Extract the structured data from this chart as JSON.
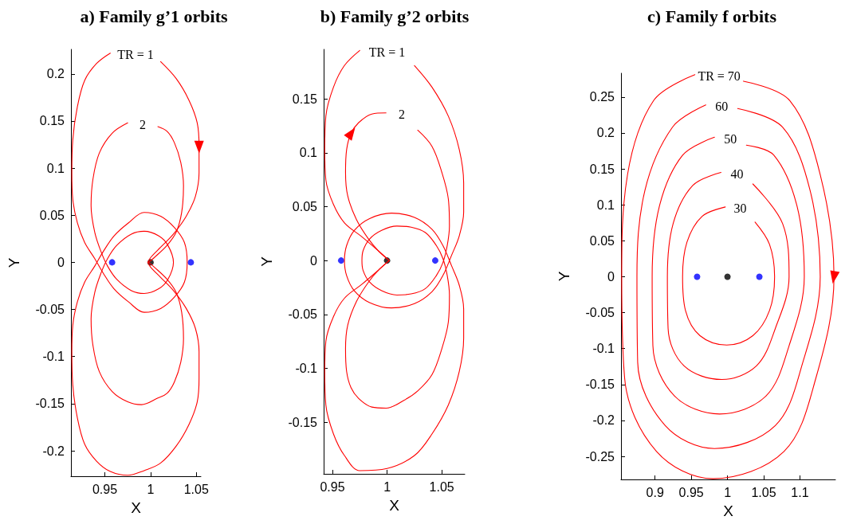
{
  "chart_data": [
    {
      "type": "line",
      "title": "a) Family g’1 orbits",
      "xlabel": "X",
      "ylabel": "Y",
      "xlim": [
        0.913,
        1.055
      ],
      "ylim": [
        -0.227,
        0.226
      ],
      "xticks": [
        0.95,
        1,
        1.05
      ],
      "yticks": [
        -0.2,
        -0.15,
        -0.1,
        -0.05,
        0,
        0.05,
        0.1,
        0.15,
        0.2
      ],
      "annotations": [
        "TR = 1",
        "2"
      ],
      "series": [
        {
          "color": "#ff0000",
          "x": [
            0.997,
            1.0,
            1.011,
            1.025,
            1.039,
            1.049,
            1.053,
            1.053,
            1.051,
            1.042,
            1.028,
            1.011,
            0.985,
            0.956,
            0.941,
            0.928,
            0.92,
            0.915,
            0.914,
            0.915,
            0.92,
            0.928,
            0.939,
            0.948,
            0.96,
            0.976,
            0.993,
            1.011,
            1.026,
            1.037,
            1.04,
            1.037,
            1.026,
            1.011,
            0.993,
            0.976,
            0.96,
            0.948,
            0.939,
            0.928,
            0.92,
            0.915,
            0.914,
            0.915,
            0.92,
            0.928,
            0.941,
            0.956,
            0.975,
            0.993,
            1.011,
            1.028,
            1.042,
            1.051,
            1.053,
            1.053,
            1.049,
            1.039,
            1.025,
            1.011,
            1.0,
            0.997
          ],
          "values": [
            0,
            0.005,
            0.016,
            0.03,
            0.049,
            0.07,
            0.095,
            0.123,
            0.148,
            0.172,
            0.195,
            0.213,
            null,
            0.222,
            0.211,
            0.193,
            0.165,
            0.13,
            0.095,
            0.067,
            0.042,
            0.021,
            0.004,
            -0.011,
            -0.028,
            -0.042,
            -0.053,
            -0.049,
            -0.037,
            -0.021,
            0,
            0.021,
            0.037,
            0.049,
            0.053,
            0.042,
            0.028,
            0.011,
            -0.004,
            -0.021,
            -0.042,
            -0.067,
            -0.095,
            -0.13,
            -0.165,
            -0.193,
            -0.211,
            -0.222,
            -0.226,
            -0.221,
            -0.213,
            -0.195,
            -0.172,
            -0.148,
            -0.123,
            -0.095,
            -0.07,
            -0.049,
            -0.03,
            -0.016,
            -0.005,
            0
          ]
        },
        {
          "color": "#ff0000",
          "x": [
            0.998,
            1.004,
            1.018,
            1.028,
            1.034,
            1.036,
            1.033,
            1.026,
            1.018,
            1.008,
            0.99,
            0.975,
            0.958,
            0.944,
            0.937,
            0.935,
            0.939,
            0.946,
            0.953,
            0.963,
            0.979,
            0.993,
            1.009,
            1.019,
            1.025,
            1.019,
            1.009,
            0.993,
            0.979,
            0.963,
            0.953,
            0.946,
            0.939,
            0.935,
            0.937,
            0.944,
            0.958,
            0.975,
            0.99,
            1.008,
            1.018,
            1.026,
            1.033,
            1.036,
            1.034,
            1.028,
            1.018,
            1.004,
            0.998
          ],
          "values": [
            0,
            0.005,
            0.018,
            0.032,
            0.053,
            0.081,
            0.106,
            0.127,
            0.139,
            0.144,
            null,
            0.148,
            0.137,
            0.116,
            0.088,
            0.06,
            0.032,
            0.011,
            -0.004,
            -0.018,
            -0.03,
            -0.033,
            -0.028,
            -0.018,
            0,
            0.018,
            0.028,
            0.033,
            0.03,
            0.018,
            0.004,
            -0.011,
            -0.032,
            -0.06,
            -0.088,
            -0.116,
            -0.137,
            -0.148,
            -0.151,
            -0.144,
            -0.139,
            -0.127,
            -0.106,
            -0.081,
            -0.053,
            -0.032,
            -0.018,
            -0.005,
            0
          ]
        },
        {
          "type": "scatter",
          "marker": "circle",
          "color": "#0000ff",
          "x": [
            0.958,
            1.044
          ],
          "values": [
            0,
            0
          ]
        },
        {
          "type": "scatter",
          "marker": "circle",
          "color": "#000000",
          "x": [
            1
          ],
          "values": [
            0
          ]
        }
      ]
    },
    {
      "type": "line",
      "title": "b) Family g’2 orbits",
      "xlabel": "X",
      "ylabel": "Y",
      "xlim": [
        0.942,
        1.071
      ],
      "ylim": [
        -0.198,
        0.196
      ],
      "xticks": [
        0.95,
        1,
        1.05
      ],
      "yticks": [
        -0.15,
        -0.1,
        -0.05,
        0,
        0.05,
        0.1,
        0.15
      ],
      "annotations": [
        "TR = 1",
        "2"
      ],
      "series": [
        {
          "color": "#ff0000",
          "x": [
            1.002,
            0.992,
            0.977,
            0.961,
            0.951,
            0.944,
            0.943,
            0.944,
            0.951,
            0.961,
            0.975,
            1.0,
            1.025,
            1.041,
            1.056,
            1.066,
            1.07,
            1.07,
            1.066,
            1.059,
            1.051,
            1.041,
            1.025,
            1.004,
            0.984,
            0.97,
            0.963,
            0.961,
            0.963,
            0.97,
            0.984,
            1.004,
            1.025,
            1.041,
            1.051,
            1.059,
            1.066,
            1.07,
            1.07,
            1.066,
            1.056,
            1.041,
            1.025,
            1.0,
            0.975,
            0.961,
            0.951,
            0.944,
            0.943,
            0.944,
            0.951,
            0.961,
            0.977,
            0.992,
            1.002
          ],
          "values": [
            0,
            0.009,
            0.022,
            0.035,
            0.052,
            0.075,
            0.103,
            0.134,
            0.161,
            0.181,
            0.195,
            null,
            0.181,
            0.161,
            0.134,
            0.103,
            0.072,
            0.045,
            0.023,
            0.005,
            -0.014,
            -0.029,
            -0.04,
            -0.044,
            -0.039,
            -0.028,
            -0.014,
            0,
            0.014,
            0.028,
            0.039,
            0.044,
            0.04,
            0.029,
            0.014,
            -0.005,
            -0.023,
            -0.045,
            -0.072,
            -0.103,
            -0.134,
            -0.161,
            -0.181,
            -0.193,
            -0.195,
            -0.181,
            -0.161,
            -0.134,
            -0.103,
            -0.075,
            -0.052,
            -0.035,
            -0.022,
            -0.009,
            0
          ]
        },
        {
          "color": "#ff0000",
          "x": [
            1.002,
            0.993,
            0.983,
            0.972,
            0.964,
            0.962,
            0.963,
            0.967,
            0.974,
            0.986,
            0.999,
            1.015,
            1.028,
            1.041,
            1.05,
            1.056,
            1.057,
            1.055,
            1.051,
            1.045,
            1.035,
            1.022,
            1.009,
            0.995,
            0.984,
            0.978,
            0.977,
            0.978,
            0.984,
            0.995,
            1.009,
            1.022,
            1.035,
            1.045,
            1.051,
            1.055,
            1.057,
            1.056,
            1.05,
            1.041,
            1.028,
            1.015,
            0.999,
            0.986,
            0.974,
            0.967,
            0.963,
            0.962,
            0.964,
            0.972,
            0.983,
            0.993,
            1.002
          ],
          "values": [
            0,
            0.008,
            0.02,
            0.038,
            0.06,
            0.082,
            0.103,
            0.118,
            0.128,
            0.136,
            0.137,
            null,
            0.121,
            0.106,
            0.082,
            0.057,
            0.032,
            0.014,
            -0.002,
            -0.014,
            -0.026,
            -0.031,
            -0.032,
            -0.028,
            -0.02,
            -0.009,
            0,
            0.009,
            0.02,
            0.028,
            0.032,
            0.031,
            0.026,
            0.014,
            0.002,
            -0.014,
            -0.032,
            -0.057,
            -0.082,
            -0.106,
            -0.121,
            -0.13,
            -0.137,
            -0.136,
            -0.128,
            -0.118,
            -0.103,
            -0.082,
            -0.06,
            -0.038,
            -0.02,
            -0.008,
            0
          ]
        },
        {
          "type": "scatter",
          "marker": "circle",
          "color": "#0000ff",
          "x": [
            0.958,
            1.044
          ],
          "values": [
            0,
            0
          ]
        },
        {
          "type": "scatter",
          "marker": "circle",
          "color": "#000000",
          "x": [
            1
          ],
          "values": [
            0
          ]
        }
      ]
    },
    {
      "type": "line",
      "title": "c) Family f orbits",
      "xlabel": "X",
      "ylabel": "Y",
      "xlim": [
        0.853,
        1.149
      ],
      "ylim": [
        -0.282,
        0.283
      ],
      "xticks": [
        0.9,
        0.95,
        1,
        1.05,
        1.1
      ],
      "yticks": [
        -0.25,
        -0.2,
        -0.15,
        -0.1,
        -0.05,
        0,
        0.05,
        0.1,
        0.15,
        0.2,
        0.25
      ],
      "annotations": [
        "TR = 70",
        "60",
        "50",
        "40",
        "30"
      ],
      "series": [
        {
          "color": "#ff0000",
          "x": [
            1.022,
            1.086,
            1.128,
            1.147,
            1.122,
            1.078,
            0.98,
            0.902,
            0.858,
            0.854,
            0.862,
            0.898,
            0.955
          ],
          "values": [
            0.272,
            0.245,
            0.142,
            0,
            -0.141,
            -0.243,
            -0.281,
            -0.243,
            -0.141,
            0,
            0.142,
            0.245,
            0.281
          ]
        },
        {
          "color": "#ff0000",
          "x": [
            1.014,
            1.076,
            1.114,
            1.128,
            1.104,
            1.066,
            0.982,
            0.914,
            0.876,
            0.875,
            0.886,
            0.924,
            0.97
          ],
          "values": [
            0.234,
            0.208,
            0.12,
            0,
            -0.119,
            -0.207,
            -0.239,
            -0.207,
            -0.119,
            0,
            0.12,
            0.208,
            0.239
          ]
        },
        {
          "color": "#ff0000",
          "x": [
            1.026,
            1.064,
            1.096,
            1.106,
            1.085,
            1.053,
            0.989,
            0.927,
            0.897,
            0.896,
            0.906,
            0.938,
            0.982
          ],
          "values": [
            0.183,
            0.169,
            0.098,
            0,
            -0.096,
            -0.166,
            -0.191,
            -0.166,
            -0.096,
            0,
            0.098,
            0.169,
            0.194
          ]
        },
        {
          "color": "#ff0000",
          "x": [
            1.035,
            1.076,
            1.085,
            1.066,
            1.04,
            0.992,
            0.94,
            0.918,
            0.917,
            0.925,
            0.952,
            0.991
          ],
          "values": [
            0.129,
            0.074,
            0,
            -0.072,
            -0.124,
            -0.143,
            -0.124,
            -0.072,
            0,
            0.074,
            0.127,
            0.145
          ]
        },
        {
          "color": "#ff0000",
          "x": [
            1.038,
            1.058,
            1.065,
            1.058,
            1.035,
            0.999,
            0.962,
            0.942,
            0.938,
            0.944,
            0.965,
            0.997
          ],
          "values": [
            0.076,
            0.045,
            0,
            -0.047,
            -0.082,
            -0.095,
            -0.082,
            -0.047,
            0,
            0.048,
            0.084,
            0.097
          ]
        },
        {
          "type": "scatter",
          "marker": "circle",
          "color": "#0000ff",
          "x": [
            0.958,
            1.044
          ],
          "values": [
            0,
            0
          ]
        },
        {
          "type": "scatter",
          "marker": "circle",
          "color": "#000000",
          "x": [
            1
          ],
          "values": [
            0
          ]
        }
      ]
    }
  ]
}
